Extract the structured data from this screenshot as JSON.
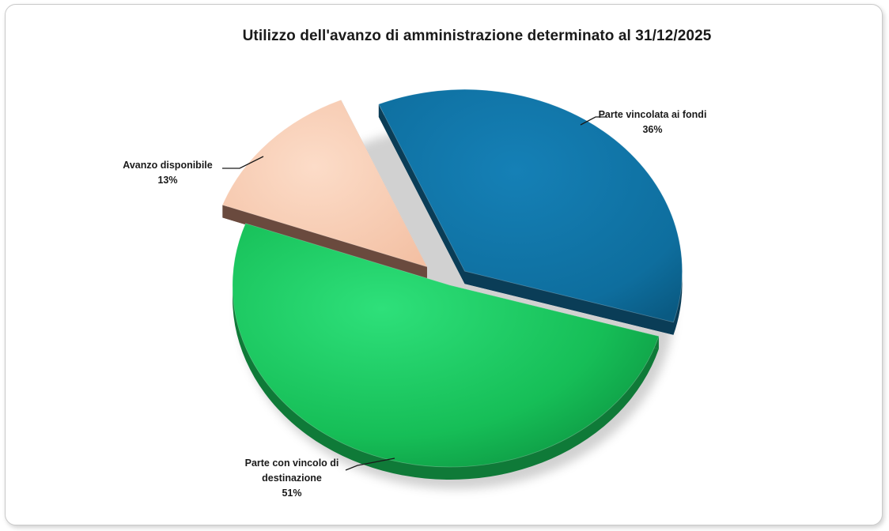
{
  "chart_data": {
    "type": "pie",
    "title": "Utilizzo dell'avanzo di amministrazione determinato al 31/12/2025",
    "slices": [
      {
        "label": "Parte vincolata ai fondi",
        "value": 36,
        "value_label": "36%",
        "color": "#0E6E9E",
        "side_color": "#0A3D57",
        "exploded": true
      },
      {
        "label_lines": [
          "Parte con vincolo di",
          "destinazione"
        ],
        "label": "Parte con vincolo di destinazione",
        "value": 51,
        "value_label": "51%",
        "color": "#18C35C",
        "side_color": "#0F7A38",
        "exploded": false
      },
      {
        "label": "Avanzo disponibile",
        "value": 13,
        "value_label": "13%",
        "color": "#F8C9AE",
        "side_color": "#6A4A3E",
        "exploded": true
      }
    ],
    "style": "3d-exploded-pie",
    "legend": "none"
  }
}
